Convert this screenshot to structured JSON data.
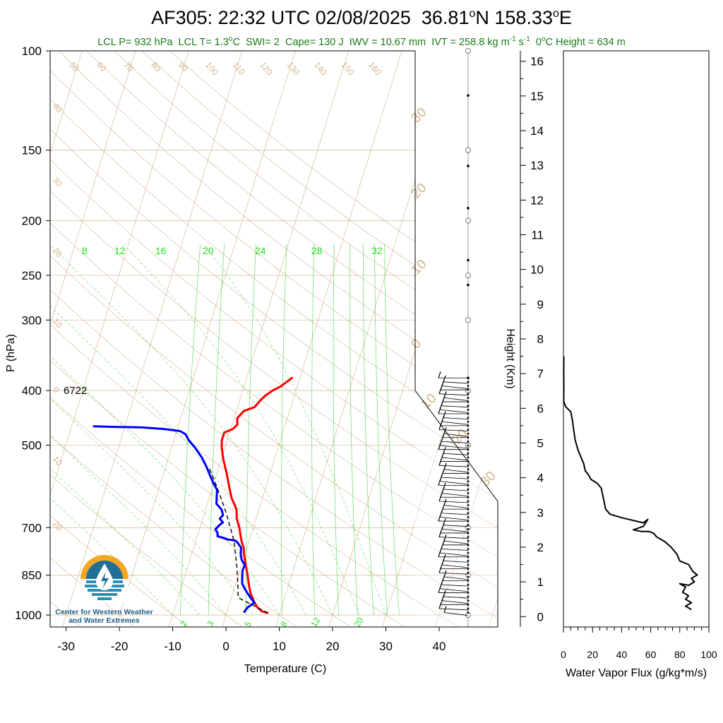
{
  "title": {
    "station": "AF305:",
    "time": "22:32 UTC 02/08/2025",
    "lat": "36.81",
    "lat_hemi": "N",
    "lon": "158.33",
    "lon_hemi": "E",
    "degree_mark": "o"
  },
  "subtitle": {
    "lcl_p": "LCL P= 932 hPa",
    "lcl_t_prefix": "LCL T= 1.3",
    "lcl_t_suffix": "C",
    "swi": "SWI= 2",
    "cape": "Cape= 130 J",
    "iwv": "IWV = 10.67 mm",
    "ivt_prefix": "IVT = 258.8 kg m",
    "ivt_exp1": "-1",
    "ivt_mid": " s",
    "ivt_exp2": "-1",
    "zero_height_prefix": "0",
    "zero_height_suffix": "C Height = 634 m",
    "degree_mark": "o"
  },
  "logo": {
    "line1": "Center for Western Weather",
    "line2": "and Water Extremes",
    "icon": "water-drop-sun-icon"
  },
  "colors": {
    "temperature": "#ff0000",
    "dewpoint": "#0000ff",
    "parcel": "#000000",
    "isotherm": "#d2b48c",
    "dry_adiabat": "#d2b48c",
    "mixing_ratio": "#22cc22",
    "moist_adiabat": "#22cc22",
    "subtitle": "#1a7a1a",
    "logo": "#1f5f8a"
  },
  "chart_data": [
    {
      "type": "line",
      "name": "skew-t",
      "xlabel": "Temperature (C)",
      "ylabel": "P (hPa)",
      "x_ticks": [
        "-30",
        "-20",
        "-10",
        "0",
        "10",
        "20",
        "30",
        "40"
      ],
      "y_ticks": [
        "100",
        "150",
        "200",
        "250",
        "300",
        "400",
        "500",
        "700",
        "850",
        "1000"
      ],
      "xlim": [
        -33,
        51
      ],
      "ylim": [
        1050,
        100
      ],
      "y_scale": "log",
      "skew_c_per_decade": 33,
      "height_label": "6722",
      "height_label_p": 400,
      "isotherm_labels": [
        "50",
        "60",
        "70",
        "80",
        "90",
        "100",
        "110",
        "120",
        "130",
        "140",
        "150",
        "160"
      ],
      "isotherm_left_labels": [
        "40",
        "30",
        "20",
        "10",
        "0",
        "10",
        "20"
      ],
      "isotherm_right_labels": [
        "30",
        "20",
        "10",
        "0",
        "10",
        "20",
        "30"
      ],
      "mixing_ratio_labels_top": [
        "8",
        "12",
        "16",
        "20",
        "24",
        "28",
        "32"
      ],
      "mixing_ratio_labels_bottom": [
        "2",
        "3",
        "5",
        "8",
        "12",
        "20"
      ],
      "series": [
        {
          "key": "temperature",
          "points": [
            [
              7.8,
              992
            ],
            [
              6.5,
              985
            ],
            [
              5.5,
              970
            ],
            [
              4.6,
              950
            ],
            [
              3.5,
              920
            ],
            [
              2.8,
              895
            ],
            [
              2.2,
              870
            ],
            [
              1.6,
              845
            ],
            [
              0.9,
              820
            ],
            [
              0.4,
              800
            ],
            [
              -0.2,
              780
            ],
            [
              -0.6,
              760
            ],
            [
              -1.4,
              740
            ],
            [
              -2.0,
              720
            ],
            [
              -2.6,
              700
            ],
            [
              -3.6,
              675
            ],
            [
              -4.2,
              650
            ],
            [
              -5.8,
              620
            ],
            [
              -6.8,
              595
            ],
            [
              -8.2,
              560
            ],
            [
              -9.6,
              530
            ],
            [
              -10.6,
              505
            ],
            [
              -11.0,
              490
            ],
            [
              -11.0,
              475
            ],
            [
              -9.6,
              468
            ],
            [
              -9.0,
              460
            ],
            [
              -9.4,
              448
            ],
            [
              -8.6,
              435
            ],
            [
              -6.8,
              428
            ],
            [
              -6.0,
              415
            ],
            [
              -5.4,
              408
            ],
            [
              -4.4,
              400
            ],
            [
              -3.2,
              394
            ],
            [
              -2.2,
              386
            ],
            [
              -1.4,
              379
            ]
          ]
        },
        {
          "key": "dewpoint",
          "points": [
            [
              3.2,
              990
            ],
            [
              3.6,
              970
            ],
            [
              4.6,
              950
            ],
            [
              3.5,
              930
            ],
            [
              2.3,
              905
            ],
            [
              1.2,
              880
            ],
            [
              0.8,
              855
            ],
            [
              0.5,
              835
            ],
            [
              0.6,
              815
            ],
            [
              -0.3,
              798
            ],
            [
              -0.8,
              780
            ],
            [
              -1.1,
              760
            ],
            [
              -2.0,
              745
            ],
            [
              -2.6,
              738
            ],
            [
              -4.0,
              735
            ],
            [
              -5.0,
              730
            ],
            [
              -6.2,
              725
            ],
            [
              -6.4,
              715
            ],
            [
              -7.0,
              705
            ],
            [
              -6.6,
              695
            ],
            [
              -6.0,
              685
            ],
            [
              -6.8,
              675
            ],
            [
              -6.4,
              665
            ],
            [
              -7.0,
              650
            ],
            [
              -8.3,
              635
            ],
            [
              -8.6,
              620
            ],
            [
              -9.0,
              600
            ],
            [
              -10.0,
              585
            ],
            [
              -11.2,
              565
            ],
            [
              -12.4,
              545
            ],
            [
              -13.8,
              525
            ],
            [
              -15.6,
              505
            ],
            [
              -17.2,
              490
            ],
            [
              -18.2,
              478
            ],
            [
              -19.4,
              472
            ],
            [
              -22.5,
              468
            ],
            [
              -27.0,
              465
            ],
            [
              -32.0,
              464
            ],
            [
              -36.0,
              463
            ]
          ]
        },
        {
          "key": "parcel",
          "points": [
            [
              7.8,
              992
            ],
            [
              1.3,
              932
            ],
            [
              0.2,
              870
            ],
            [
              -0.8,
              820
            ],
            [
              -1.8,
              780
            ],
            [
              -2.8,
              740
            ],
            [
              -4.3,
              700
            ],
            [
              -5.9,
              660
            ],
            [
              -7.8,
              620
            ],
            [
              -9.9,
              580
            ],
            [
              -12.0,
              545
            ]
          ]
        }
      ],
      "wind_barbs": {
        "pressure_top": 380,
        "pressure_bottom": 990,
        "count": 60
      }
    },
    {
      "type": "line",
      "name": "water-vapor-flux-profile",
      "xlabel": "Water Vapor Flux (g/kg*m/s)",
      "ylabel": "Height (Km)",
      "x_ticks": [
        "0",
        "20",
        "40",
        "60",
        "80",
        "100"
      ],
      "y_ticks": [
        "0",
        "1",
        "2",
        "3",
        "4",
        "5",
        "6",
        "7",
        "8",
        "9",
        "10",
        "11",
        "12",
        "13",
        "14",
        "15",
        "16"
      ],
      "xlim": [
        0,
        100
      ],
      "ylim": [
        -0.3,
        16.3
      ],
      "series": [
        {
          "key": "flux",
          "points": [
            [
              0.3,
              7.5
            ],
            [
              0.2,
              7.0
            ],
            [
              0.3,
              6.6
            ],
            [
              0.2,
              6.2
            ],
            [
              1.5,
              6.05
            ],
            [
              5,
              5.9
            ],
            [
              6,
              5.7
            ],
            [
              7,
              5.4
            ],
            [
              8,
              5.1
            ],
            [
              10,
              4.8
            ],
            [
              12,
              4.6
            ],
            [
              14,
              4.4
            ],
            [
              15,
              4.2
            ],
            [
              17,
              4.1
            ],
            [
              19,
              3.95
            ],
            [
              23,
              3.85
            ],
            [
              26,
              3.7
            ],
            [
              27,
              3.5
            ],
            [
              28,
              3.3
            ],
            [
              29,
              3.1
            ],
            [
              32,
              2.95
            ],
            [
              40,
              2.85
            ],
            [
              50,
              2.75
            ],
            [
              55,
              2.7
            ],
            [
              58,
              2.8
            ],
            [
              55,
              2.6
            ],
            [
              48,
              2.5
            ],
            [
              54,
              2.45
            ],
            [
              59,
              2.45
            ],
            [
              62,
              2.4
            ],
            [
              64,
              2.3
            ],
            [
              68,
              2.2
            ],
            [
              70,
              2.15
            ],
            [
              74,
              2.0
            ],
            [
              78,
              1.8
            ],
            [
              80,
              1.6
            ],
            [
              86,
              1.5
            ],
            [
              89,
              1.3
            ],
            [
              92,
              1.2
            ],
            [
              88,
              1.1
            ],
            [
              90,
              1.0
            ],
            [
              86,
              0.9
            ],
            [
              80,
              0.95
            ],
            [
              84,
              0.85
            ],
            [
              82,
              0.7
            ],
            [
              86,
              0.6
            ],
            [
              84,
              0.5
            ],
            [
              88,
              0.4
            ],
            [
              84,
              0.3
            ],
            [
              88,
              0.2
            ]
          ]
        }
      ]
    }
  ]
}
